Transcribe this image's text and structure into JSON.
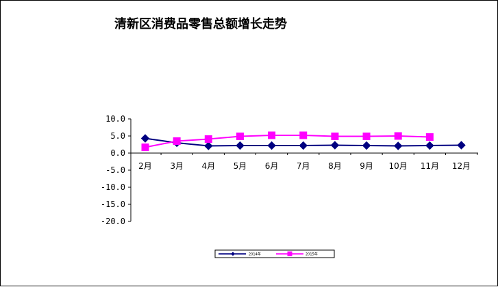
{
  "chart_data": {
    "type": "line",
    "title": "清新区消费品零售总额增长走势",
    "categories": [
      "2月",
      "3月",
      "4月",
      "5月",
      "6月",
      "7月",
      "8月",
      "9月",
      "10月",
      "11月",
      "12月"
    ],
    "y_ticks": [
      "10.0",
      "5.0",
      "0.0",
      "-5.0",
      "-10.0",
      "-15.0",
      "-20.0"
    ],
    "ylim": [
      -20,
      10
    ],
    "grid": false,
    "legend_position": "bottom",
    "series": [
      {
        "name": "2014年",
        "color": "#000080",
        "marker": "diamond",
        "values": [
          4.3,
          3.0,
          2.1,
          2.2,
          2.2,
          2.2,
          2.3,
          2.2,
          2.1,
          2.2,
          2.3
        ]
      },
      {
        "name": "2015年",
        "color": "#FF00FF",
        "marker": "square",
        "values": [
          1.7,
          3.5,
          4.1,
          4.9,
          5.2,
          5.2,
          4.9,
          4.9,
          5.0,
          4.7,
          null
        ]
      }
    ]
  }
}
